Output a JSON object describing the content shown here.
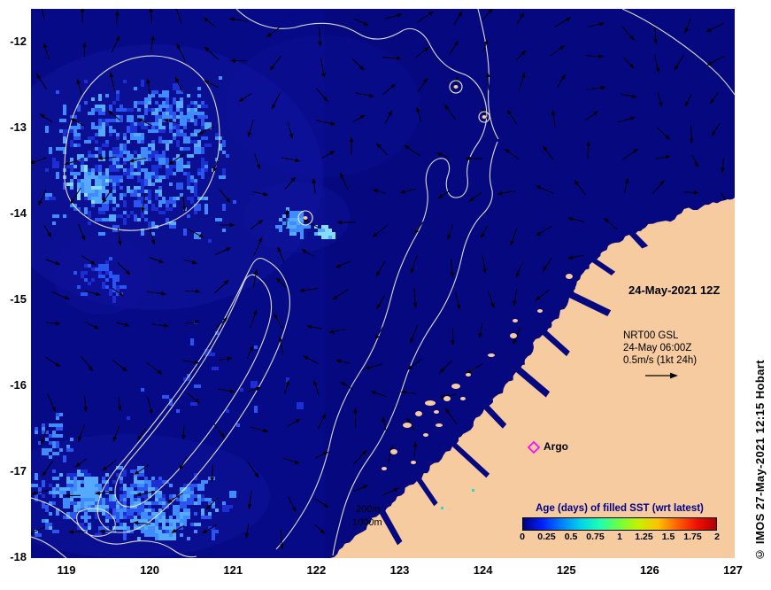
{
  "annotations": {
    "map_datetime": "24-May-2021 12Z",
    "model_name": "NRT00 GSL",
    "model_datetime": "24-May 06:00Z",
    "velocity_scale": "0.5m/s (1kt 24h)",
    "argo_label": "Argo",
    "depth_200": "200m",
    "depth_1000": "1000m",
    "copyright": "© IMOS 27-May-2021 12:15 Hobart"
  },
  "axes": {
    "x_ticks": [
      "119",
      "120",
      "121",
      "122",
      "123",
      "124",
      "125",
      "126",
      "127"
    ],
    "y_ticks": [
      "-12",
      "-13",
      "-14",
      "-15",
      "-16",
      "-17",
      "-18"
    ]
  },
  "colorbar": {
    "title": "Age (days) of filled SST (wrt latest)",
    "tick_labels": [
      "0",
      "0.25",
      "0.5",
      "0.75",
      "1",
      "1.25",
      "1.5",
      "1.75",
      "2"
    ],
    "min": 0,
    "max": 2,
    "units": "days",
    "gradient": [
      "#00007f",
      "#0020ff",
      "#0080ff",
      "#00d4e8",
      "#20ffb0",
      "#70ff40",
      "#c8f000",
      "#ffc000",
      "#ff6000",
      "#f01000",
      "#b00000"
    ]
  },
  "colors": {
    "ocean": "#05087f",
    "ocean_light_zone": "#10149e",
    "land": "#f6cba0",
    "contour": "#eeeeee",
    "arrow": "#000000",
    "argo_marker": "#ff00ff",
    "colorbar_title": "#00008b",
    "patch_palette": [
      "#1b2fd4",
      "#2b55f0",
      "#3f8cff",
      "#55aaff",
      "#86dcff"
    ]
  }
}
